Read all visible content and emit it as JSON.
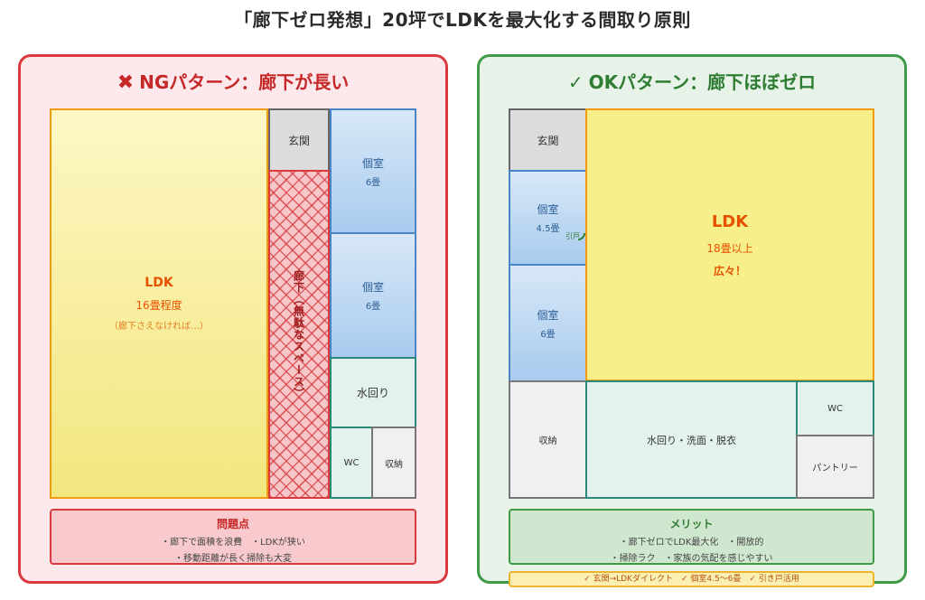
{
  "title": "「廊下ゼロ発想」20坪でLDKを最大化する間取り原則",
  "ng": {
    "title": "NGパターン：廊下が長い",
    "icon": "x-icon",
    "ldk": {
      "label": "LDK",
      "size": "16畳程度",
      "note": "（廊下さえなければ…）"
    },
    "entrance": "玄関",
    "corridor": "廊下（無駄なスペース）",
    "room1": {
      "label": "個室",
      "size": "6畳"
    },
    "room2": {
      "label": "個室",
      "size": "6畳"
    },
    "water": "水回り",
    "wc": "WC",
    "storage": "収納",
    "problems": {
      "title": "問題点",
      "line1": "・廊下で面積を浪費　・LDKが狭い",
      "line2": "・移動距離が長く掃除も大変"
    }
  },
  "ok": {
    "title": "OKパターン：廊下ほぼゼロ",
    "icon": "check-icon",
    "check": "✓",
    "entrance": "玄関",
    "room1": {
      "label": "個室",
      "size": "4.5畳"
    },
    "room2": {
      "label": "個室",
      "size": "6畳"
    },
    "door": "引戸",
    "ldk": {
      "label": "LDK",
      "size": "18畳以上",
      "note": "広々！"
    },
    "storage": "収納",
    "water": "水回り・洗面・脱衣",
    "wc": "WC",
    "pantry": "パントリー",
    "merits": {
      "title": "メリット",
      "line1": "・廊下ゼロでLDK最大化　・開放的",
      "line2": "・掃除ラク　・家族の気配を感じやすい"
    },
    "checklist": "✓ 玄関→LDKダイレクト　✓ 個室4.5〜6畳　✓ 引き戸活用"
  },
  "colors": {
    "ng_accent": "#d93a3e",
    "ok_accent": "#3f9a45",
    "ldk_fill": "#f7f08a",
    "room_blue": "#a9cbee"
  }
}
